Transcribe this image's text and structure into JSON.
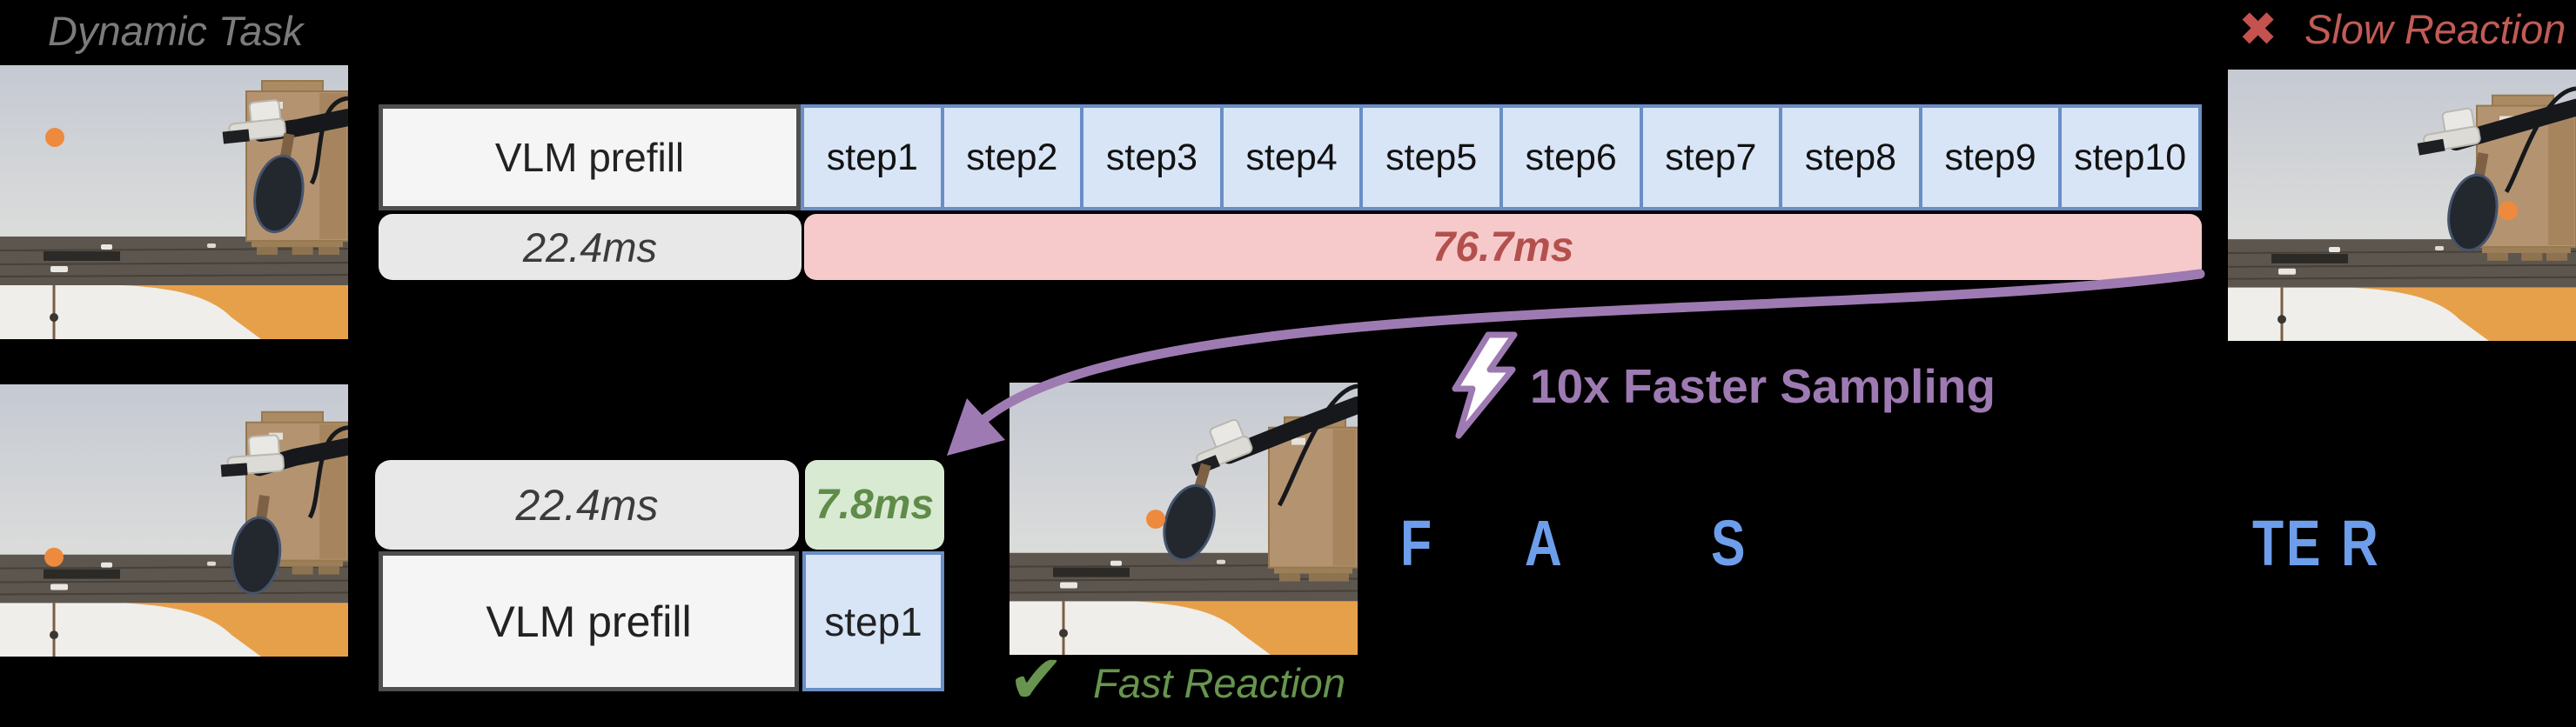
{
  "labels": {
    "dynamic_task": "Dynamic Task",
    "slow_reaction": "Slow Reaction",
    "fast_reaction": "Fast Reaction",
    "faster_sampling": "10x Faster Sampling"
  },
  "icons": {
    "cross": "✖",
    "check": "✔",
    "bolt": "lightning-bolt"
  },
  "timeline_slow": {
    "prefill_label": "VLM prefill",
    "prefill_time": "22.4ms",
    "steps": [
      "step1",
      "step2",
      "step3",
      "step4",
      "step5",
      "step6",
      "step7",
      "step8",
      "step9",
      "step10"
    ],
    "decode_time": "76.7ms"
  },
  "timeline_fast": {
    "prefill_label": "VLM prefill",
    "prefill_time": "22.4ms",
    "step_label": "step1",
    "step_time": "7.8ms"
  },
  "faster_word": {
    "letters": [
      "F",
      "A",
      "S",
      "T",
      "E",
      "R"
    ]
  },
  "colors": {
    "background": "#000000",
    "purple_accent": "#9e7ab2",
    "faster_blue": "#6d9eeb",
    "step_fill": "#d8e5f6",
    "step_border": "#6a8ec5",
    "decode_pink": "#f6caca",
    "decode_text_red": "#b3504e",
    "slow_red": "#c4524e",
    "fast_green_fill": "#d9ead3",
    "fast_green_text": "#5f8c49",
    "reaction_green": "#67944e",
    "time_bar_gray": "#e8e8e8",
    "prefill_fill": "#f5f5f5",
    "prefill_border": "#4f4f4f",
    "label_gray": "#7b7b7b"
  }
}
